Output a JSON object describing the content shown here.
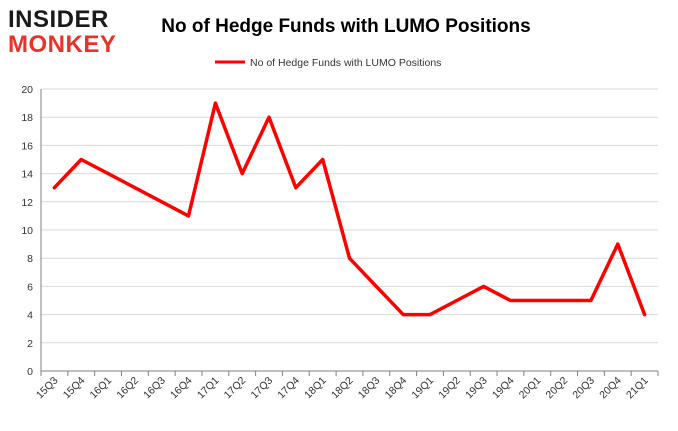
{
  "logo": {
    "line1": "INSIDER",
    "line2": "MONKEY"
  },
  "colors": {
    "series": "#ff0000",
    "grid": "#d9d9d9",
    "axis": "#808080"
  },
  "chart_data": {
    "type": "line",
    "title": "No of Hedge Funds with LUMO Positions",
    "xlabel": "",
    "ylabel": "",
    "ylim": [
      0,
      20
    ],
    "yticks": [
      0,
      2,
      4,
      6,
      8,
      10,
      12,
      14,
      16,
      18,
      20
    ],
    "grid": "horizontal",
    "legend_position": "top",
    "categories": [
      "15Q3",
      "15Q4",
      "16Q1",
      "16Q2",
      "16Q3",
      "16Q4",
      "17Q1",
      "17Q2",
      "17Q3",
      "17Q4",
      "18Q1",
      "18Q2",
      "18Q3",
      "18Q4",
      "19Q1",
      "19Q2",
      "19Q3",
      "19Q4",
      "20Q1",
      "20Q2",
      "20Q3",
      "20Q4",
      "21Q1"
    ],
    "series": [
      {
        "name": "No of Hedge Funds with LUMO Positions",
        "values": [
          13,
          15,
          14,
          13,
          12,
          11,
          19,
          14,
          18,
          13,
          15,
          8,
          6,
          4,
          4,
          5,
          6,
          5,
          5,
          5,
          5,
          9,
          4
        ]
      }
    ]
  }
}
